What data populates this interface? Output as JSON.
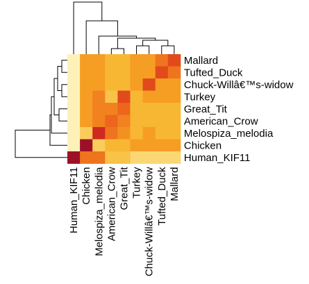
{
  "chart_data": {
    "type": "heatmap",
    "title": "",
    "xlabel": "",
    "ylabel": "",
    "legend": "none",
    "row_labels": [
      "Mallard",
      "Tufted_Duck",
      "Chuck-Willâ€™s-widow",
      "Turkey",
      "Great_Tit",
      "American_Crow",
      "Melospiza_melodia",
      "Chicken",
      "Human_KIF11"
    ],
    "col_labels": [
      "Human_KIF11",
      "Chicken",
      "Melospiza_melodia",
      "American_Crow",
      "Great_Tit",
      "Turkey",
      "Chuck-Willâ€™s-widow",
      "Tufted_Duck",
      "Mallard"
    ],
    "values": [
      [
        0.97,
        0.6,
        0.6,
        0.7,
        0.7,
        0.6,
        0.6,
        0.45,
        0.3
      ],
      [
        0.97,
        0.6,
        0.6,
        0.7,
        0.7,
        0.6,
        0.6,
        0.3,
        0.45
      ],
      [
        0.97,
        0.6,
        0.6,
        0.7,
        0.7,
        0.6,
        0.3,
        0.6,
        0.6
      ],
      [
        0.97,
        0.6,
        0.5,
        0.75,
        0.3,
        0.7,
        0.6,
        0.6,
        0.6
      ],
      [
        0.97,
        0.6,
        0.5,
        0.5,
        0.4,
        0.7,
        0.7,
        0.7,
        0.7
      ],
      [
        0.97,
        0.6,
        0.5,
        0.4,
        0.5,
        0.7,
        0.7,
        0.7,
        0.7
      ],
      [
        0.97,
        0.8,
        0.2,
        0.45,
        0.55,
        0.7,
        0.6,
        0.7,
        0.7
      ],
      [
        0.97,
        0.05,
        0.8,
        0.7,
        0.7,
        0.6,
        0.6,
        0.6,
        0.6
      ],
      [
        0.05,
        0.45,
        0.45,
        0.75,
        0.75,
        0.85,
        0.85,
        0.85,
        0.85
      ]
    ],
    "colors": [
      "#8b0b2a",
      "#c8201f",
      "#e8541a",
      "#f2821f",
      "#f7b025",
      "#fbd36a",
      "#fef7c9"
    ],
    "dendrograms": "rows and columns"
  }
}
